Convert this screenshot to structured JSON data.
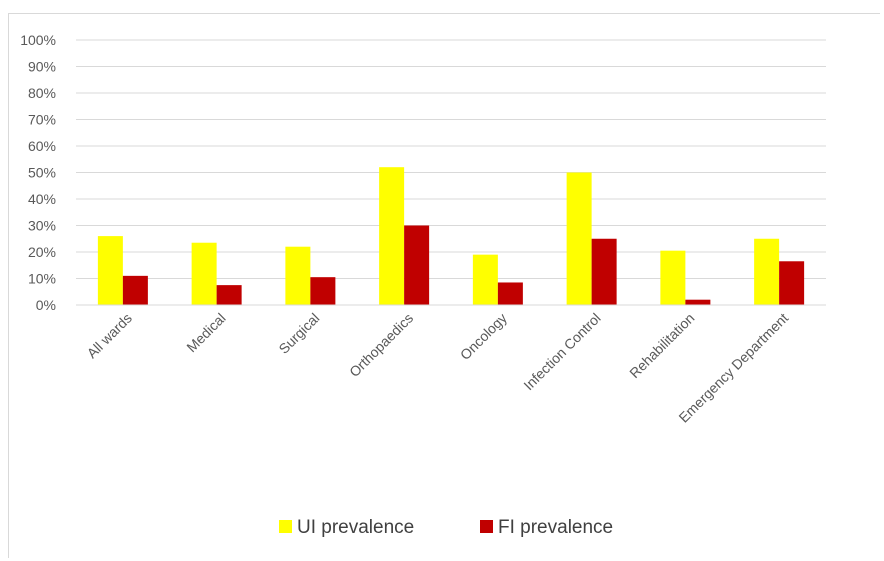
{
  "chart_data": {
    "type": "bar",
    "categories": [
      "All wards",
      "Medical",
      "Surgical",
      "Orthopaedics",
      "Oncology",
      "Infection Control",
      "Rehabilitation",
      "Emergency Department"
    ],
    "series": [
      {
        "name": "UI prevalence",
        "color": "#ffff00",
        "values": [
          26,
          23.5,
          22,
          52,
          19,
          50,
          20.5,
          25
        ]
      },
      {
        "name": "FI prevalence",
        "color": "#c00000",
        "values": [
          11,
          7.5,
          10.5,
          30,
          8.5,
          25,
          2,
          16.5
        ]
      }
    ],
    "title": "",
    "xlabel": "",
    "ylabel": "",
    "ylim": [
      0,
      100
    ],
    "yticks": [
      "0%",
      "10%",
      "20%",
      "30%",
      "40%",
      "50%",
      "60%",
      "70%",
      "80%",
      "90%",
      "100%"
    ],
    "grid": true,
    "legend_position": "bottom"
  }
}
